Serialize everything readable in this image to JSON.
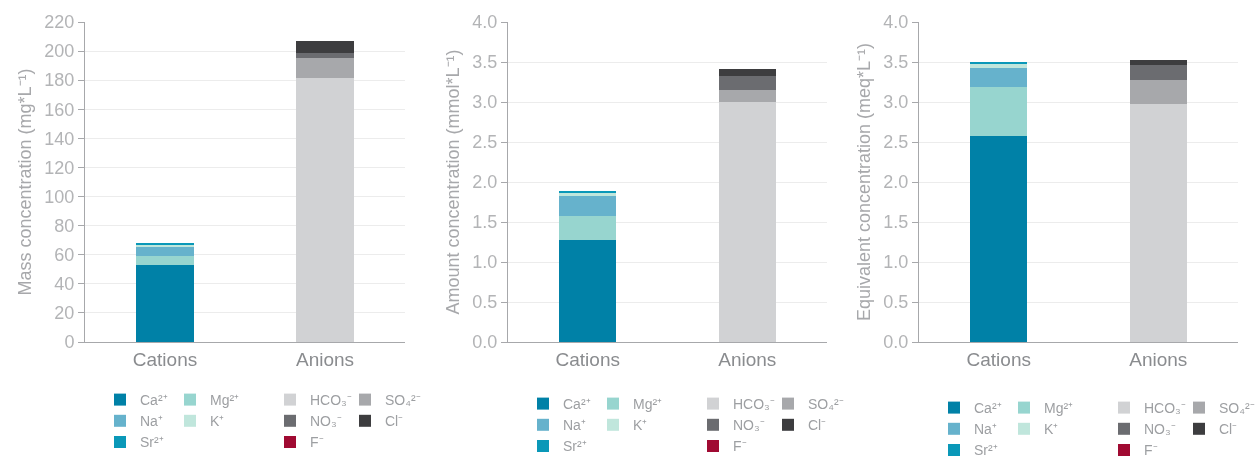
{
  "chart_data": [
    {
      "type": "bar",
      "stacked": true,
      "ylabel": "Mass concentration (mg*L⁻¹)",
      "categories": [
        "Cations",
        "Anions"
      ],
      "ylim": [
        0,
        220
      ],
      "yticks": [
        0,
        20,
        40,
        60,
        80,
        100,
        120,
        140,
        160,
        180,
        200,
        220
      ],
      "grid": "y",
      "legend": "bottom",
      "series": [
        {
          "name": "Ca²⁺",
          "color": "#0081a7",
          "values": [
            53,
            null
          ]
        },
        {
          "name": "Mg²⁺",
          "color": "#97d5cf",
          "values": [
            6,
            null
          ]
        },
        {
          "name": "Na⁺",
          "color": "#66b2cc",
          "values": [
            6.5,
            null
          ]
        },
        {
          "name": "K⁺",
          "color": "#c0e6dc",
          "values": [
            1.5,
            null
          ]
        },
        {
          "name": "Sr²⁺",
          "color": "#0a98b8",
          "values": [
            0.5,
            null
          ]
        },
        {
          "name": "HCO₃⁻",
          "color": "#d1d2d4",
          "values": [
            null,
            181.5
          ]
        },
        {
          "name": "SO₄²⁻",
          "color": "#a7a8ab",
          "values": [
            null,
            13.5
          ]
        },
        {
          "name": "NO₃⁻",
          "color": "#6b6c70",
          "values": [
            null,
            4
          ]
        },
        {
          "name": "Cl⁻",
          "color": "#3d3d3f",
          "values": [
            null,
            8
          ]
        },
        {
          "name": "F⁻",
          "color": "#a00a32",
          "values": [
            null,
            0
          ]
        }
      ]
    },
    {
      "type": "bar",
      "stacked": true,
      "ylabel": "Amount concentration (mmol*L⁻¹)",
      "categories": [
        "Cations",
        "Anions"
      ],
      "ylim": [
        0,
        4
      ],
      "yticks": [
        {
          "value": 0,
          "label": "0.0"
        },
        0.5,
        {
          "value": 1,
          "label": "1.0"
        },
        1.5,
        {
          "value": 2,
          "label": "2.0"
        },
        2.5,
        {
          "value": 3,
          "label": "3.0"
        },
        3.5,
        {
          "value": 4,
          "label": "4.0"
        }
      ],
      "grid": "y",
      "legend": "bottom",
      "series": [
        {
          "name": "Ca²⁺",
          "color": "#0081a7",
          "values": [
            1.27,
            null
          ]
        },
        {
          "name": "Mg²⁺",
          "color": "#97d5cf",
          "values": [
            0.3,
            null
          ]
        },
        {
          "name": "Na⁺",
          "color": "#66b2cc",
          "values": [
            0.26,
            null
          ]
        },
        {
          "name": "K⁺",
          "color": "#c0e6dc",
          "values": [
            0.04,
            null
          ]
        },
        {
          "name": "Sr²⁺",
          "color": "#0a98b8",
          "values": [
            0.01,
            null
          ]
        },
        {
          "name": "HCO₃⁻",
          "color": "#d1d2d4",
          "values": [
            null,
            3.0
          ]
        },
        {
          "name": "SO₄²⁻",
          "color": "#a7a8ab",
          "values": [
            null,
            0.15
          ]
        },
        {
          "name": "NO₃⁻",
          "color": "#6b6c70",
          "values": [
            null,
            0.18
          ]
        },
        {
          "name": "Cl⁻",
          "color": "#3d3d3f",
          "values": [
            null,
            0.08
          ]
        },
        {
          "name": "F⁻",
          "color": "#a00a32",
          "values": [
            null,
            0
          ]
        }
      ]
    },
    {
      "type": "bar",
      "stacked": true,
      "ylabel": "Equivalent concentration (meq*L⁻¹)",
      "categories": [
        "Cations",
        "Anions"
      ],
      "ylim": [
        0,
        4
      ],
      "yticks": [
        {
          "value": 0,
          "label": "0.0"
        },
        0.5,
        {
          "value": 1,
          "label": "1.0"
        },
        1.5,
        {
          "value": 2,
          "label": "2.0"
        },
        2.5,
        {
          "value": 3,
          "label": "3.0"
        },
        3.5,
        {
          "value": 4,
          "label": "4.0"
        }
      ],
      "grid": "y",
      "legend": "bottom",
      "series": [
        {
          "name": "Ca²⁺",
          "color": "#0081a7",
          "values": [
            2.57,
            null
          ]
        },
        {
          "name": "Mg²⁺",
          "color": "#97d5cf",
          "values": [
            0.62,
            null
          ]
        },
        {
          "name": "Na⁺",
          "color": "#66b2cc",
          "values": [
            0.24,
            null
          ]
        },
        {
          "name": "K⁺",
          "color": "#c0e6dc",
          "values": [
            0.05,
            null
          ]
        },
        {
          "name": "Sr²⁺",
          "color": "#0a98b8",
          "values": [
            0.01,
            null
          ]
        },
        {
          "name": "HCO₃⁻",
          "color": "#d1d2d4",
          "values": [
            null,
            2.97
          ]
        },
        {
          "name": "SO₄²⁻",
          "color": "#a7a8ab",
          "values": [
            null,
            0.31
          ]
        },
        {
          "name": "NO₃⁻",
          "color": "#6b6c70",
          "values": [
            null,
            0.18
          ]
        },
        {
          "name": "Cl⁻",
          "color": "#3d3d3f",
          "values": [
            null,
            0.07
          ]
        },
        {
          "name": "F⁻",
          "color": "#a00a32",
          "values": [
            null,
            0
          ]
        }
      ]
    }
  ]
}
